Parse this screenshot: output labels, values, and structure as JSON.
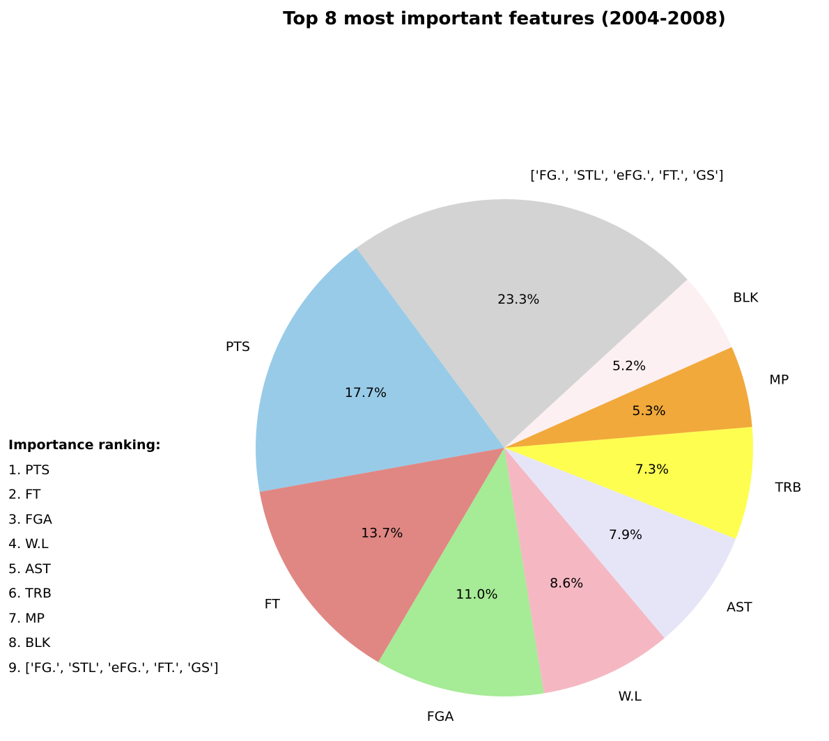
{
  "chart_data": {
    "type": "pie",
    "title": "Top 8 most important features (2004-2008)",
    "slices": [
      {
        "label": "PTS",
        "value": 17.7,
        "pct_label": "17.7%",
        "color": "#98cbe8"
      },
      {
        "label": "FT",
        "value": 13.7,
        "pct_label": "13.7%",
        "color": "#e08783"
      },
      {
        "label": "FGA",
        "value": 11.0,
        "pct_label": "11.0%",
        "color": "#a6eb96"
      },
      {
        "label": "W.L",
        "value": 8.6,
        "pct_label": "8.6%",
        "color": "#f5b8c3"
      },
      {
        "label": "AST",
        "value": 7.9,
        "pct_label": "7.9%",
        "color": "#e6e5f8"
      },
      {
        "label": "TRB",
        "value": 7.3,
        "pct_label": "7.3%",
        "color": "#fefe51"
      },
      {
        "label": "MP",
        "value": 5.3,
        "pct_label": "5.3%",
        "color": "#f1a93b"
      },
      {
        "label": "BLK",
        "value": 5.2,
        "pct_label": "5.2%",
        "color": "#fcf0f2"
      },
      {
        "label": "['FG.', 'STL', 'eFG.', 'FT.', 'GS']",
        "value": 23.3,
        "pct_label": "23.3%",
        "color": "#d3d3d3"
      }
    ]
  },
  "ranking": {
    "heading": "Importance ranking:",
    "items": [
      "1. PTS",
      "2. FT",
      "3. FGA",
      "4. W.L",
      "5. AST",
      "6. TRB",
      "7. MP",
      "8. BLK",
      "9. ['FG.', 'STL', 'eFG.', 'FT.', 'GS']"
    ]
  }
}
